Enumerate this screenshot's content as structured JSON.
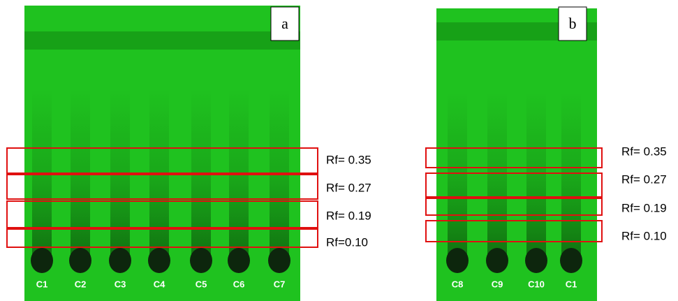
{
  "panels": [
    {
      "label": "a",
      "lanes": [
        "C1",
        "C2",
        "C3",
        "C4",
        "C5",
        "C6",
        "C7"
      ],
      "rf_labels": [
        "Rf= 0.35",
        "Rf= 0.27",
        "Rf= 0.19",
        "Rf=0.10"
      ]
    },
    {
      "label": "b",
      "lanes": [
        "C8",
        "C9",
        "C10",
        "C1"
      ],
      "rf_labels": [
        "Rf= 0.35",
        "Rf= 0.27",
        "Rf= 0.19",
        "Rf= 0.10"
      ]
    }
  ]
}
